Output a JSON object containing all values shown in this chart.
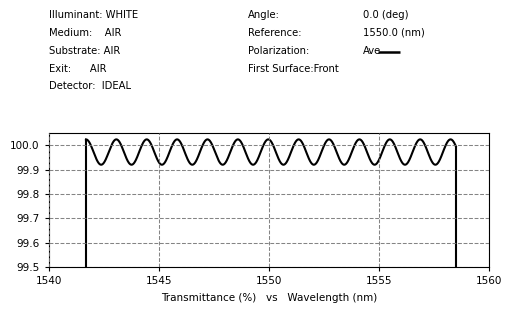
{
  "header_info": [
    [
      "Illuminant: WHITE",
      "Angle:",
      "0.0 (deg)"
    ],
    [
      "Medium:    AIR",
      "Reference:",
      "1550.0 (nm)"
    ],
    [
      "Substrate: AIR",
      "Polarization:",
      "Ave"
    ],
    [
      "Exit:      AIR",
      "First Surface:Front",
      ""
    ],
    [
      "Detector:  IDEAL",
      "",
      ""
    ]
  ],
  "xmin": 1540,
  "xmax": 1560,
  "ymin": 99.5,
  "ymax": 100.05,
  "ytick_vals": [
    99.5,
    99.6,
    99.7,
    99.8,
    99.9,
    100.0
  ],
  "xtick_vals": [
    1540,
    1545,
    1550,
    1555,
    1560
  ],
  "xlabel": "Transmittance (%)   vs   Wavelength (nm)",
  "wave_start": 1541.7,
  "wave_end": 1558.5,
  "osc_amplitude": 0.052,
  "osc_mean": 99.972,
  "osc_period": 1.38,
  "line_color": "#000000",
  "bg_color": "#ffffff",
  "grid_color": "#777777",
  "font_size_header": 7.2,
  "font_size_axis": 7.5
}
